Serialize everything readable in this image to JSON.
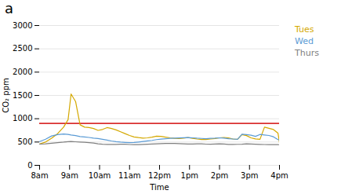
{
  "chart_data": {
    "type": "line",
    "title": "a",
    "xlabel": "Time",
    "ylabel": "CO₂ ppm",
    "xlim": [
      0,
      16
    ],
    "ylim": [
      0,
      3000
    ],
    "xticks": [
      {
        "value": 0,
        "label": "8am"
      },
      {
        "value": 2,
        "label": "9am"
      },
      {
        "value": 4,
        "label": "10am"
      },
      {
        "value": 6,
        "label": "11am"
      },
      {
        "value": 8,
        "label": "12pm"
      },
      {
        "value": 10,
        "label": "1pm"
      },
      {
        "value": 12,
        "label": "2pm"
      },
      {
        "value": 14,
        "label": "3pm"
      },
      {
        "value": 16,
        "label": "4pm"
      }
    ],
    "yticks": [
      0,
      500,
      1000,
      1500,
      2000,
      2500,
      3000
    ],
    "grid": "y",
    "legend": "right",
    "threshold": {
      "y": 900,
      "color": "#d93030"
    },
    "x": [
      0,
      0.4,
      0.8,
      1.2,
      1.6,
      1.9,
      2.1,
      2.4,
      2.7,
      3.0,
      3.3,
      3.6,
      3.9,
      4.2,
      4.5,
      4.8,
      5.1,
      5.4,
      5.7,
      6.0,
      6.3,
      6.6,
      6.9,
      7.2,
      7.5,
      7.8,
      8.1,
      8.4,
      8.7,
      9.0,
      9.3,
      9.6,
      9.9,
      10.2,
      10.5,
      10.8,
      11.1,
      11.4,
      11.7,
      12.0,
      12.3,
      12.6,
      12.9,
      13.2,
      13.5,
      13.8,
      14.1,
      14.4,
      14.7,
      15.0,
      15.3,
      15.6,
      15.9,
      16.0
    ],
    "series": [
      {
        "name": "Tues",
        "color": "#d4a800",
        "values": [
          460,
          500,
          580,
          680,
          820,
          980,
          1530,
          1370,
          870,
          820,
          810,
          790,
          750,
          770,
          810,
          790,
          760,
          720,
          680,
          640,
          610,
          595,
          585,
          590,
          605,
          625,
          620,
          605,
          590,
          580,
          575,
          585,
          595,
          580,
          565,
          555,
          555,
          565,
          575,
          590,
          598,
          588,
          565,
          558,
          660,
          638,
          590,
          568,
          558,
          820,
          795,
          768,
          690,
          490
        ]
      },
      {
        "name": "Wed",
        "color": "#5b9bd5",
        "values": [
          510,
          560,
          630,
          658,
          672,
          665,
          652,
          638,
          618,
          608,
          598,
          585,
          575,
          558,
          542,
          522,
          508,
          498,
          492,
          488,
          490,
          500,
          512,
          524,
          535,
          552,
          562,
          572,
          578,
          582,
          588,
          592,
          595,
          590,
          582,
          577,
          572,
          578,
          582,
          590,
          582,
          572,
          565,
          558,
          668,
          658,
          648,
          622,
          662,
          652,
          640,
          612,
          552,
          542
        ]
      },
      {
        "name": "Thurs",
        "color": "#808080",
        "values": [
          455,
          462,
          475,
          488,
          498,
          508,
          512,
          506,
          500,
          494,
          488,
          478,
          462,
          452,
          450,
          448,
          450,
          453,
          452,
          447,
          445,
          446,
          449,
          452,
          456,
          462,
          466,
          469,
          470,
          470,
          466,
          462,
          458,
          458,
          462,
          460,
          455,
          452,
          456,
          460,
          456,
          450,
          448,
          451,
          454,
          460,
          456,
          452,
          450,
          447,
          445,
          444,
          443,
          442
        ]
      }
    ]
  }
}
